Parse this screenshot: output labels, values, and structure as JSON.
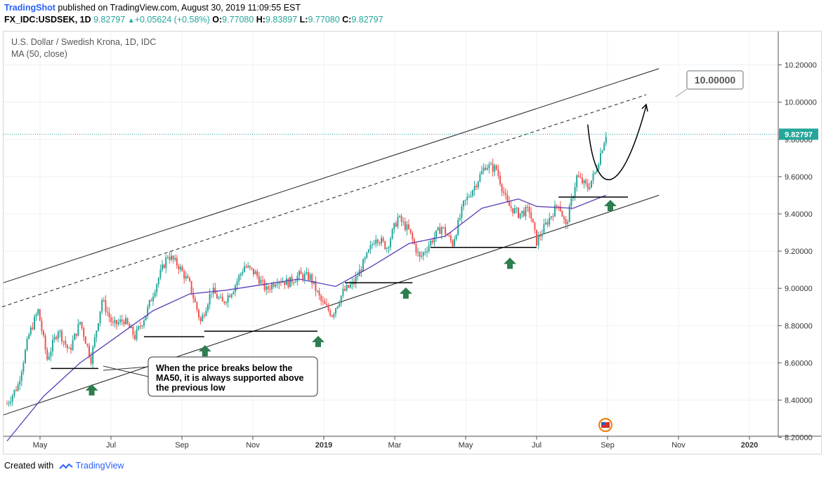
{
  "header": {
    "publisher": "TradingShot",
    "published_text": "published on TradingView.com, August 30, 2019 11:09:55 EST",
    "symbol": "FX_IDC:USDSEK, 1D",
    "last": "9.82797",
    "change": "+0.05624 (+0.58%)",
    "o_label": "O:",
    "o": "9.77080",
    "h_label": "H:",
    "h": "9.83897",
    "l_label": "L:",
    "l": "9.77080",
    "c_label": "C:",
    "c": "9.82797"
  },
  "legend": {
    "title": "U.S. Dollar / Swedish Krona, 1D, IDC",
    "indicator": "MA (50, close)"
  },
  "footer": {
    "created_with": "Created with",
    "brand": "TradingView"
  },
  "colors": {
    "up": "#26a69a",
    "down": "#ef5350",
    "ma": "#5b3fb5",
    "price_line": "#26a69a",
    "support_arrow": "#2e7d4f"
  },
  "chart_data": {
    "type": "candlestick",
    "ylim": [
      8.17,
      10.37
    ],
    "y_ticks": [
      "10.20000",
      "10.00000",
      "9.80000",
      "9.60000",
      "9.40000",
      "9.20000",
      "9.00000",
      "8.80000",
      "8.60000",
      "8.40000",
      "8.20000"
    ],
    "x_ticks": [
      "May",
      "Jul",
      "Sep",
      "Nov",
      "2019",
      "Mar",
      "May",
      "Jul",
      "Sep",
      "Nov",
      "2020"
    ],
    "current_price_label": "9.82797",
    "target_label": "10.00000",
    "annotation": "When the price breaks below the MA50, it is always supported above the previous low",
    "price_path": [
      [
        0,
        8.38
      ],
      [
        6,
        8.48
      ],
      [
        12,
        8.75
      ],
      [
        17,
        8.88
      ],
      [
        22,
        8.62
      ],
      [
        28,
        8.78
      ],
      [
        34,
        8.66
      ],
      [
        40,
        8.82
      ],
      [
        46,
        8.62
      ],
      [
        52,
        8.94
      ],
      [
        58,
        8.8
      ],
      [
        64,
        8.83
      ],
      [
        70,
        8.74
      ],
      [
        76,
        8.86
      ],
      [
        82,
        9.03
      ],
      [
        88,
        9.18
      ],
      [
        94,
        9.12
      ],
      [
        100,
        9.02
      ],
      [
        106,
        8.82
      ],
      [
        112,
        8.99
      ],
      [
        118,
        8.92
      ],
      [
        124,
        9.0
      ],
      [
        130,
        9.12
      ],
      [
        136,
        9.08
      ],
      [
        142,
        8.99
      ],
      [
        148,
        9.05
      ],
      [
        154,
        9.03
      ],
      [
        160,
        9.07
      ],
      [
        166,
        9.06
      ],
      [
        172,
        8.93
      ],
      [
        178,
        8.86
      ],
      [
        184,
        8.98
      ],
      [
        190,
        9.03
      ],
      [
        196,
        9.15
      ],
      [
        202,
        9.28
      ],
      [
        208,
        9.22
      ],
      [
        214,
        9.38
      ],
      [
        220,
        9.31
      ],
      [
        226,
        9.16
      ],
      [
        232,
        9.25
      ],
      [
        238,
        9.33
      ],
      [
        244,
        9.24
      ],
      [
        250,
        9.45
      ],
      [
        256,
        9.55
      ],
      [
        262,
        9.66
      ],
      [
        268,
        9.64
      ],
      [
        274,
        9.45
      ],
      [
        280,
        9.4
      ],
      [
        286,
        9.42
      ],
      [
        290,
        9.25
      ],
      [
        296,
        9.36
      ],
      [
        302,
        9.46
      ],
      [
        306,
        9.33
      ],
      [
        312,
        9.6
      ],
      [
        318,
        9.54
      ],
      [
        322,
        9.62
      ],
      [
        328,
        9.83
      ]
    ],
    "ma_path": [
      [
        0,
        8.18
      ],
      [
        20,
        8.42
      ],
      [
        40,
        8.6
      ],
      [
        60,
        8.74
      ],
      [
        80,
        8.88
      ],
      [
        100,
        8.97
      ],
      [
        120,
        8.99
      ],
      [
        140,
        9.02
      ],
      [
        160,
        9.05
      ],
      [
        180,
        9.01
      ],
      [
        200,
        9.12
      ],
      [
        220,
        9.24
      ],
      [
        240,
        9.28
      ],
      [
        260,
        9.43
      ],
      [
        280,
        9.48
      ],
      [
        290,
        9.44
      ],
      [
        310,
        9.43
      ],
      [
        328,
        9.5
      ]
    ],
    "support_lows": [
      {
        "start": 24,
        "end": 50,
        "price": 8.57
      },
      {
        "start": 75,
        "end": 108,
        "price": 8.74
      },
      {
        "start": 108,
        "end": 170,
        "price": 8.77
      },
      {
        "start": 185,
        "end": 222,
        "price": 9.03
      },
      {
        "start": 232,
        "end": 290,
        "price": 9.22
      },
      {
        "start": 302,
        "end": 340,
        "price": 9.49
      }
    ],
    "support_arrows": [
      46,
      108,
      170,
      218,
      275,
      330
    ],
    "channel": {
      "upper": [
        [
          -2,
          9.03
        ],
        [
          357,
          10.18
        ]
      ],
      "middle": [
        [
          -6,
          8.89
        ],
        [
          350,
          10.04
        ]
      ],
      "lower": [
        [
          -2,
          8.32
        ],
        [
          357,
          9.5
        ]
      ]
    },
    "projection": [
      [
        318,
        9.88
      ],
      [
        330,
        9.6
      ],
      [
        350,
        9.98
      ]
    ]
  }
}
